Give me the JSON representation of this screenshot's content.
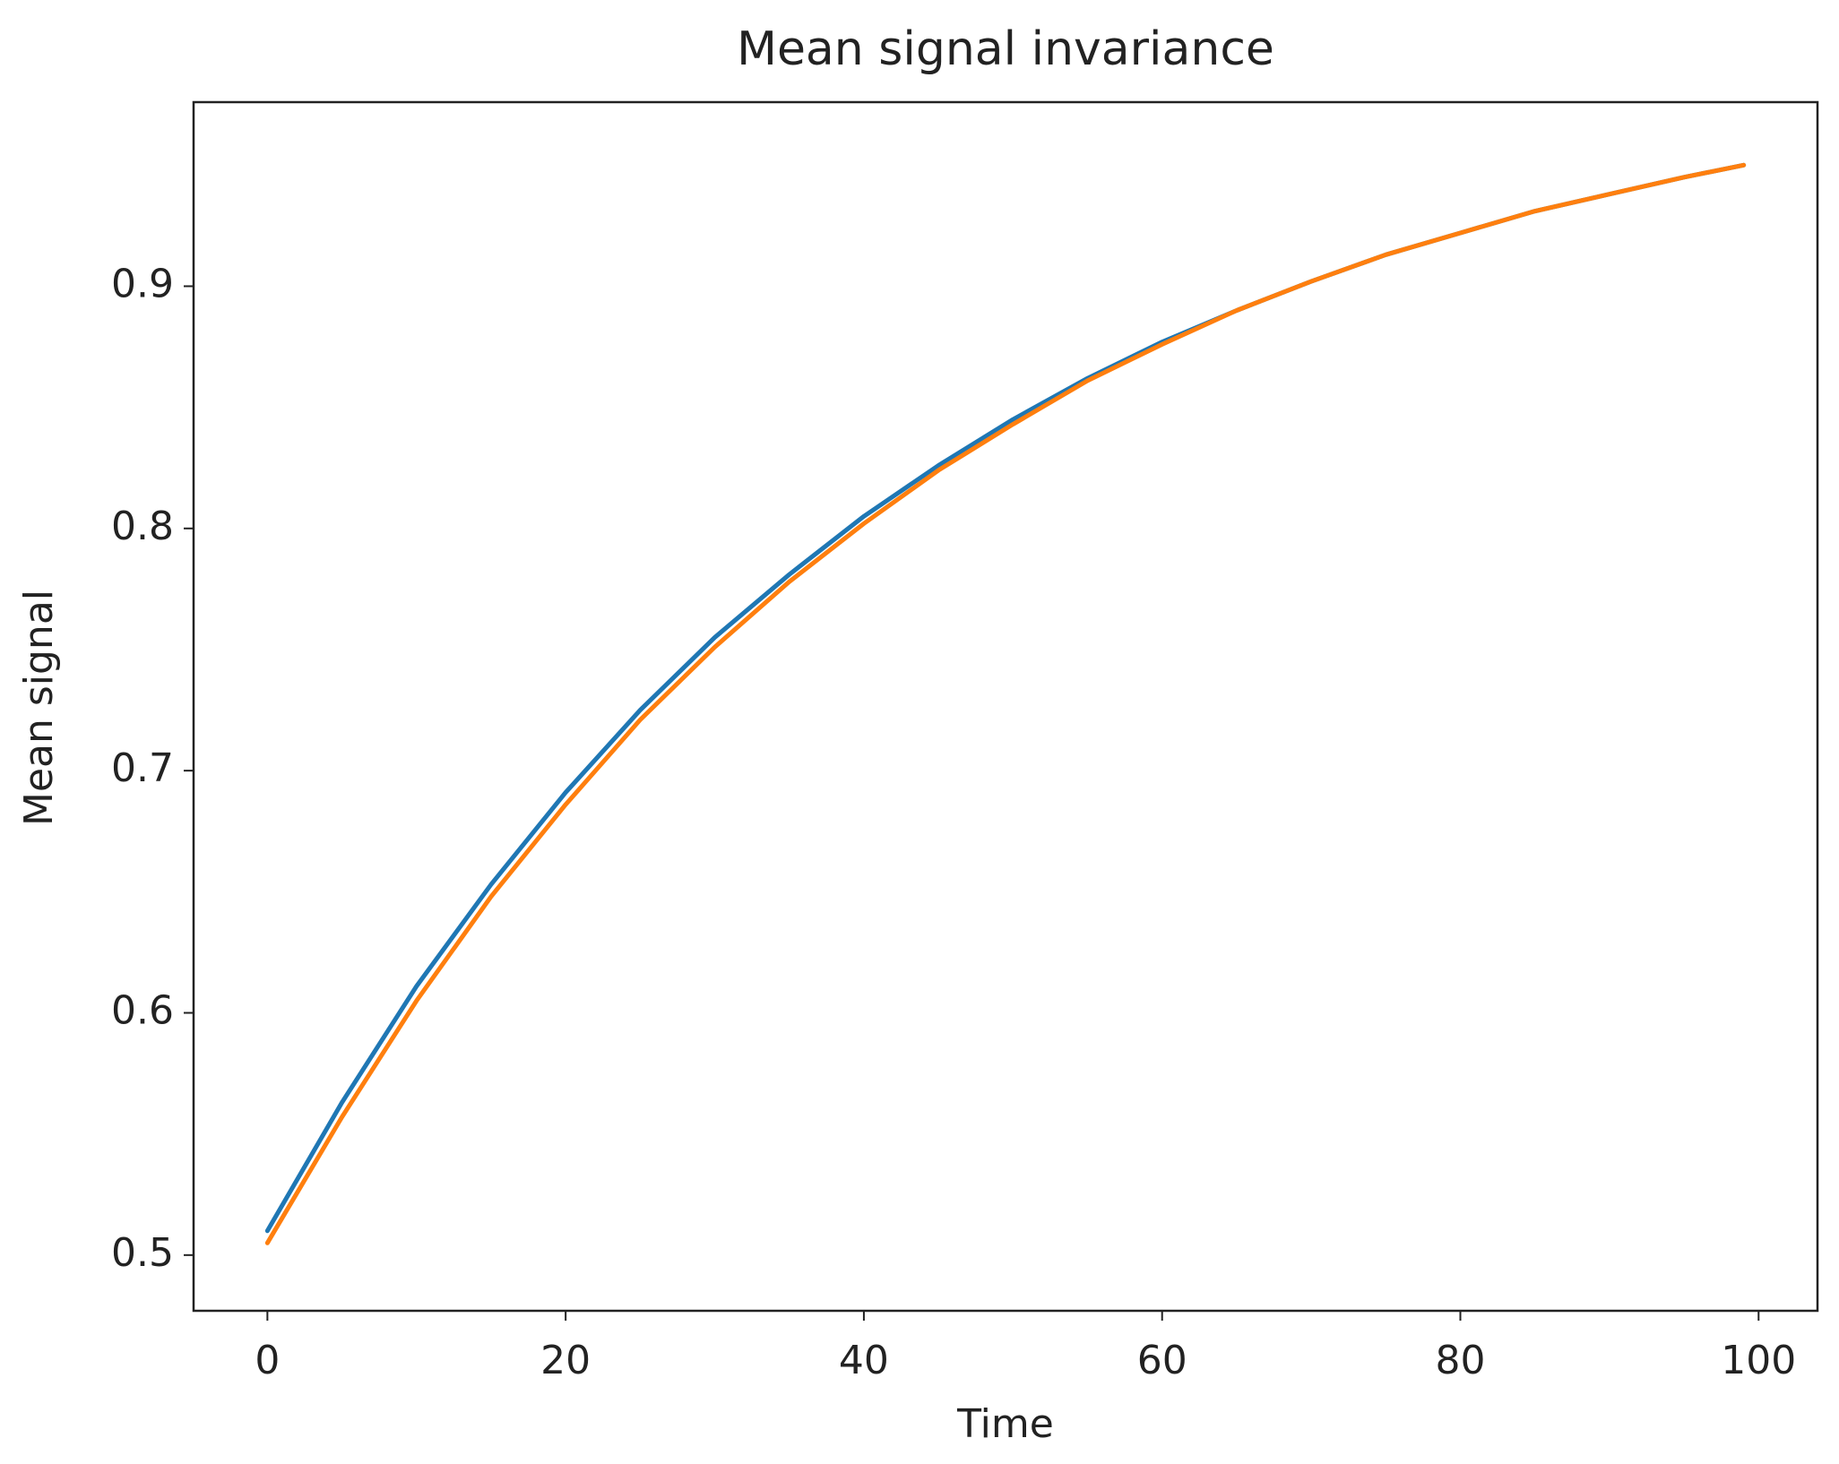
{
  "chart_data": {
    "type": "line",
    "title": "Mean signal invariance",
    "x_label": "Time",
    "y_label": "Mean signal",
    "x": [
      0,
      5,
      10,
      15,
      20,
      25,
      30,
      35,
      40,
      45,
      50,
      55,
      60,
      65,
      70,
      75,
      80,
      85,
      90,
      95,
      99
    ],
    "series": [
      {
        "color": "#1f77b4",
        "values": [
          0.51,
          0.563,
          0.611,
          0.653,
          0.691,
          0.725,
          0.755,
          0.781,
          0.805,
          0.826,
          0.845,
          0.862,
          0.877,
          0.89,
          0.902,
          0.913,
          0.922,
          0.931,
          0.938,
          0.945,
          0.95
        ]
      },
      {
        "color": "#ff7f0e",
        "values": [
          0.505,
          0.557,
          0.605,
          0.648,
          0.686,
          0.721,
          0.751,
          0.778,
          0.802,
          0.824,
          0.843,
          0.861,
          0.876,
          0.89,
          0.902,
          0.913,
          0.922,
          0.931,
          0.938,
          0.945,
          0.95
        ]
      }
    ],
    "xlim": [
      -4.95,
      103.95
    ],
    "xticks": [
      0,
      20,
      40,
      60,
      80,
      100
    ],
    "ylim": [
      0.477,
      0.976
    ],
    "yticks": [
      0.5,
      0.6,
      0.7,
      0.8,
      0.9
    ],
    "grid": false
  }
}
